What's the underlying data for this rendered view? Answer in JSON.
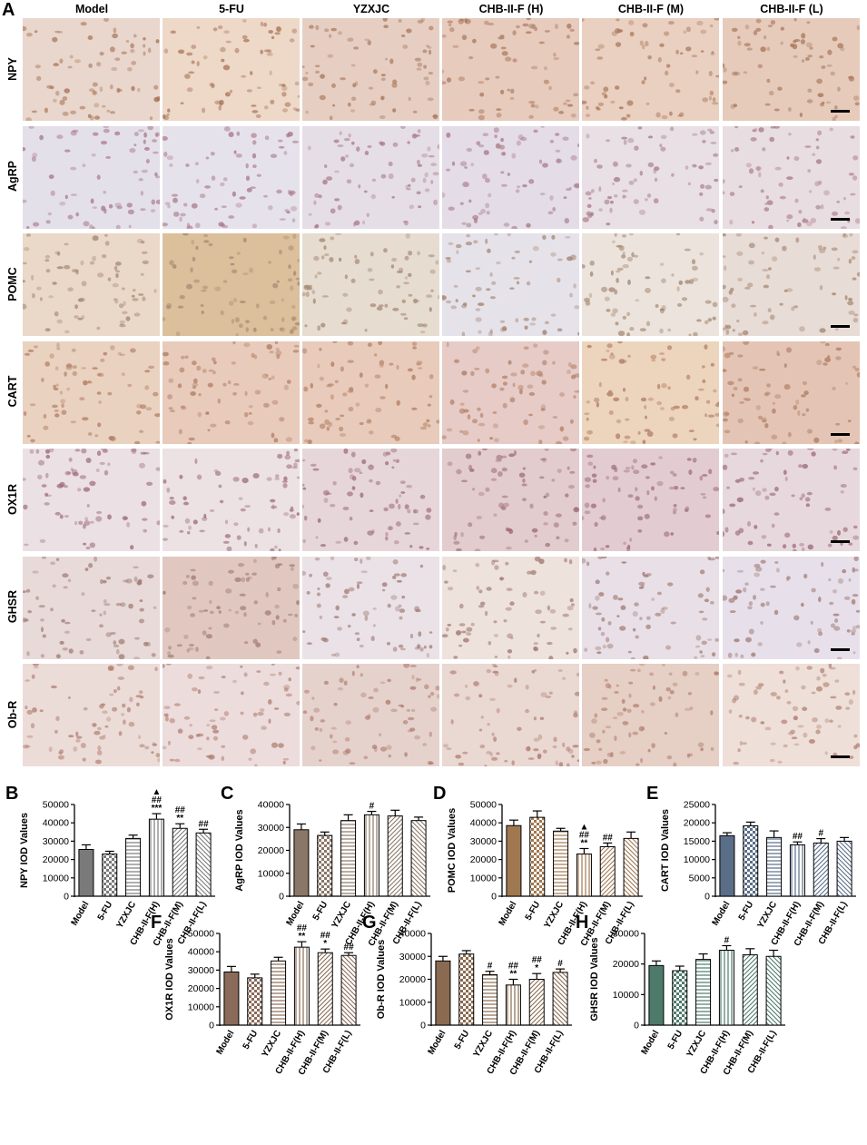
{
  "panel_a": {
    "letter": "A",
    "columns": [
      "Model",
      "5-FU",
      "YZXJC",
      "CHB-II-F (H)",
      "CHB-II-F (M)",
      "CHB-II-F (L)"
    ],
    "rows": [
      "NPY",
      "AgRP",
      "POMC",
      "CART",
      "OX1R",
      "GHSR",
      "Ob-R"
    ],
    "tile_colors": [
      [
        "#e9d6cc",
        "#eed8c8",
        "#e6cfc2",
        "#e7cbbd",
        "#ead0c0",
        "#e6cbbb"
      ],
      [
        "#e4e0ea",
        "#e6e2ec",
        "#e6dee6",
        "#e4dce6",
        "#e8e0e4",
        "#e8dde0"
      ],
      [
        "#ead8c8",
        "#dcc09c",
        "#e6dcd0",
        "#e6e2ea",
        "#ece4dc",
        "#e8dcd6"
      ],
      [
        "#ead2c0",
        "#e8cbbb",
        "#e8cbba",
        "#e6cbc6",
        "#edd5bd",
        "#e4c5b5"
      ],
      [
        "#ebe0e4",
        "#ece2e4",
        "#e6d6da",
        "#e2ccce",
        "#e2ccd2",
        "#e6d8dc"
      ],
      [
        "#e7dad8",
        "#e0c8c0",
        "#eae2e6",
        "#eee2dc",
        "#e8e0e6",
        "#e7e0ea"
      ],
      [
        "#ecdcd8",
        "#ecdcdc",
        "#e6d2cc",
        "#ead8d2",
        "#e6cfc4",
        "#eedfd8"
      ]
    ],
    "dot_colors": [
      "#a8765a",
      "#a87a88",
      "#a48670",
      "#b07c62",
      "#9c6a78",
      "#a07872",
      "#b07e70"
    ]
  },
  "chart_data": [
    {
      "letter": "B",
      "type": "bar",
      "categories": [
        "Model",
        "5-FU",
        "YZXJC",
        "CHB-II-F(H)",
        "CHB-II-F(M)",
        "CHB-II-F(L)"
      ],
      "values": [
        25500,
        23000,
        31500,
        42000,
        37000,
        34500
      ],
      "errors": [
        2500,
        1500,
        1800,
        3000,
        2500,
        2000
      ],
      "ylabel": "NPY IOD Values",
      "ylim": [
        0,
        50000
      ],
      "yticks": [
        "0",
        "10000",
        "20000",
        "30000",
        "40000",
        "50000"
      ],
      "annotations": [
        "",
        "",
        "",
        "▲\n##\n***",
        "##\n**",
        "##"
      ],
      "color": "#7a7a7a",
      "pattern": [
        "solid",
        "checker",
        "hlines",
        "vlines",
        "diag",
        "back"
      ]
    },
    {
      "letter": "C",
      "type": "bar",
      "categories": [
        "Model",
        "5-FU",
        "YZXJC",
        "CHB-II-F(H)",
        "CHB-II-F(M)",
        "CHB-II-F(L)"
      ],
      "values": [
        29000,
        26500,
        33000,
        35500,
        35000,
        33000
      ],
      "errors": [
        2500,
        1500,
        2500,
        1500,
        2500,
        1500
      ],
      "ylabel": "AgRP IOD Values",
      "ylim": [
        0,
        40000
      ],
      "yticks": [
        "0",
        "10000",
        "20000",
        "30000",
        "40000"
      ],
      "annotations": [
        "",
        "",
        "",
        "#",
        "",
        ""
      ],
      "color": "#8b7767",
      "pattern": [
        "solid",
        "checker",
        "hlines",
        "vlines",
        "diag",
        "back"
      ]
    },
    {
      "letter": "D",
      "type": "bar",
      "categories": [
        "Model",
        "5-FU",
        "YZXJC",
        "CHB-II-F(H)",
        "CHB-II-F(M)",
        "CHB-II-F(L)"
      ],
      "values": [
        38500,
        43000,
        35500,
        23000,
        27000,
        31500
      ],
      "errors": [
        3000,
        3500,
        1500,
        3000,
        2000,
        3500
      ],
      "ylabel": "POMC IOD Values",
      "ylim": [
        0,
        50000
      ],
      "yticks": [
        "0",
        "10000",
        "20000",
        "30000",
        "40000",
        "50000"
      ],
      "annotations": [
        "",
        "",
        "",
        "▲\n##\n**",
        "##",
        ""
      ],
      "color": "#a07850",
      "pattern": [
        "solid",
        "checker",
        "hlines",
        "vlines",
        "diag",
        "back"
      ]
    },
    {
      "letter": "E",
      "type": "bar",
      "categories": [
        "Model",
        "5-FU",
        "YZXJC",
        "CHB-II-F(H)",
        "CHB-II-F(M)",
        "CHB-II-F(L)"
      ],
      "values": [
        16500,
        19200,
        16000,
        14000,
        14500,
        15000
      ],
      "errors": [
        800,
        1000,
        1800,
        800,
        1200,
        1000
      ],
      "ylabel": "CART IOD Values",
      "ylim": [
        0,
        25000
      ],
      "yticks": [
        "0",
        "5000",
        "10000",
        "15000",
        "20000",
        "25000"
      ],
      "annotations": [
        "",
        "",
        "",
        "##",
        "#",
        ""
      ],
      "color": "#5a6e88",
      "pattern": [
        "solid",
        "checker",
        "hlines",
        "vlines",
        "diag",
        "back"
      ]
    },
    {
      "letter": "F",
      "type": "bar",
      "categories": [
        "Model",
        "5-FU",
        "YZXJC",
        "CHB-II-F(H)",
        "CHB-II-F(M)",
        "CHB-II-F(L)"
      ],
      "values": [
        29000,
        25800,
        35000,
        42500,
        39500,
        38000
      ],
      "errors": [
        3000,
        2000,
        2000,
        3000,
        2000,
        1500
      ],
      "ylabel": "OX1R IOD Values",
      "ylim": [
        0,
        50000
      ],
      "yticks": [
        "0",
        "10000",
        "20000",
        "30000",
        "40000",
        "50000"
      ],
      "annotations": [
        "",
        "",
        "",
        "##\n**",
        "##\n*",
        "##"
      ],
      "color": "#8a6a58",
      "pattern": [
        "solid",
        "checker",
        "hlines",
        "vlines",
        "diag",
        "back"
      ]
    },
    {
      "letter": "G",
      "type": "bar",
      "categories": [
        "Model",
        "5-FU",
        "YZXJC",
        "CHB-II-F(H)",
        "CHB-II-F(M)",
        "CHB-II-F(L)"
      ],
      "values": [
        28000,
        31000,
        22000,
        17500,
        20000,
        23000
      ],
      "errors": [
        2000,
        1500,
        1500,
        2500,
        2500,
        1500
      ],
      "ylabel": "Ob-R IOD Values",
      "ylim": [
        0,
        40000
      ],
      "yticks": [
        "0",
        "10000",
        "20000",
        "30000",
        "40000"
      ],
      "annotations": [
        "",
        "",
        "#",
        "##\n**",
        "##\n*",
        "#"
      ],
      "color": "#8a6a50",
      "pattern": [
        "solid",
        "checker",
        "hlines",
        "vlines",
        "diag",
        "back"
      ]
    },
    {
      "letter": "H",
      "type": "bar",
      "categories": [
        "Model",
        "5-FU",
        "YZXJC",
        "CHB-II-F(H)",
        "CHB-II-F(M)",
        "CHB-II-F(L)"
      ],
      "values": [
        19500,
        17800,
        21500,
        24500,
        23000,
        22500
      ],
      "errors": [
        1500,
        1500,
        1800,
        1500,
        2000,
        2000
      ],
      "ylabel": "GHSR IOD Values",
      "ylim": [
        0,
        30000
      ],
      "yticks": [
        "0",
        "10000",
        "20000",
        "30000"
      ],
      "annotations": [
        "",
        "",
        "",
        "#",
        "",
        ""
      ],
      "color": "#4e7a6a",
      "pattern": [
        "solid",
        "checker",
        "hlines",
        "vlines",
        "diag",
        "back"
      ]
    }
  ]
}
